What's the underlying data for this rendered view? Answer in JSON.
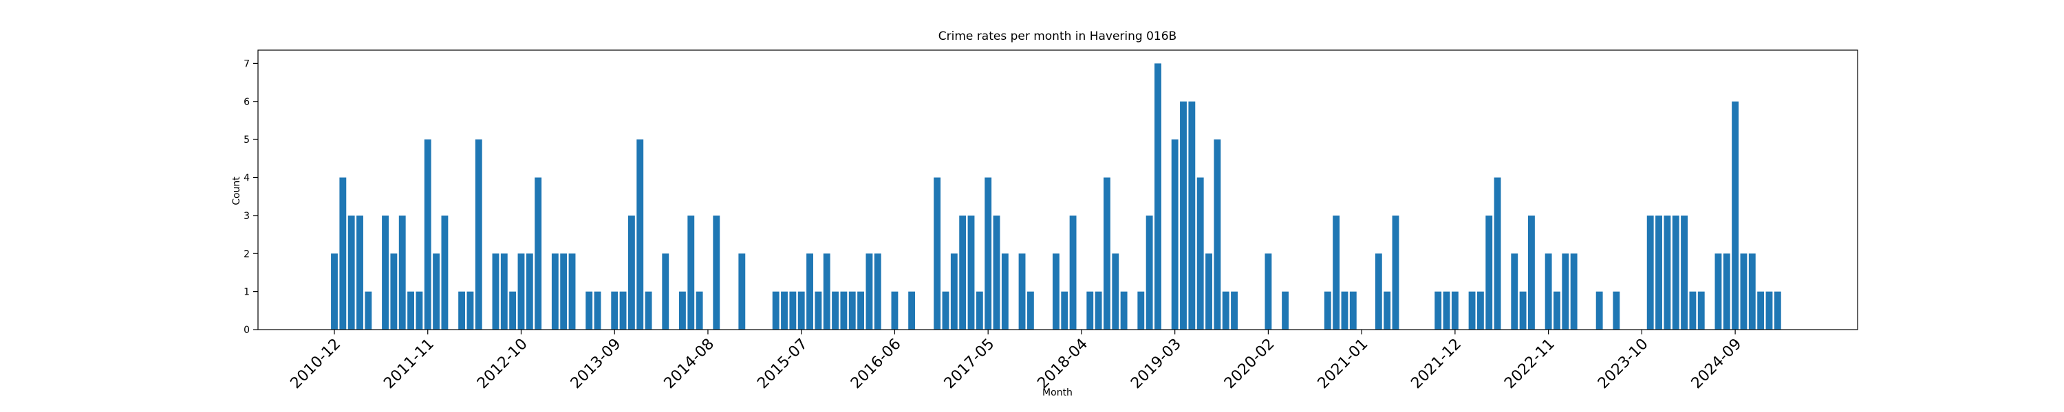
{
  "chart_data": {
    "type": "bar",
    "title": "Crime rates per month in Havering 016B",
    "x_label": "Month",
    "y_label": "Count",
    "color": "#1f77b4",
    "categories": [
      "2010-12",
      null,
      null,
      null,
      null,
      null,
      null,
      null,
      null,
      null,
      null,
      "2011-11",
      null,
      null,
      null,
      null,
      null,
      null,
      null,
      null,
      null,
      null,
      "2012-10",
      null,
      null,
      null,
      null,
      null,
      null,
      null,
      null,
      null,
      null,
      "2013-09",
      null,
      null,
      null,
      null,
      null,
      null,
      null,
      null,
      null,
      null,
      "2014-08",
      null,
      null,
      null,
      null,
      null,
      null,
      null,
      null,
      null,
      null,
      "2015-07",
      null,
      null,
      null,
      null,
      null,
      null,
      null,
      null,
      null,
      null,
      "2016-06",
      null,
      null,
      null,
      null,
      null,
      null,
      null,
      null,
      null,
      null,
      "2017-05",
      null,
      null,
      null,
      null,
      null,
      null,
      null,
      null,
      null,
      null,
      "2018-04",
      null,
      null,
      null,
      null,
      null,
      null,
      null,
      null,
      null,
      null,
      "2019-03",
      null,
      null,
      null,
      null,
      null,
      null,
      null,
      null,
      null,
      null,
      "2020-02",
      null,
      null,
      null,
      null,
      null,
      null,
      null,
      null,
      null,
      null,
      "2021-01",
      null,
      null,
      null,
      null,
      null,
      null,
      null,
      null,
      null,
      null,
      "2021-12",
      null,
      null,
      null,
      null,
      null,
      null,
      null,
      null,
      null,
      null,
      "2022-11",
      null,
      null,
      null,
      null,
      null,
      null,
      null,
      null,
      null,
      null,
      "2023-10",
      null,
      null,
      null,
      null,
      null,
      null,
      null,
      null,
      null,
      null,
      "2024-09",
      null,
      null,
      null,
      null,
      null
    ],
    "values": [
      2,
      4,
      3,
      3,
      1,
      0,
      3,
      2,
      3,
      1,
      1,
      5,
      2,
      3,
      0,
      1,
      1,
      5,
      0,
      2,
      2,
      1,
      2,
      2,
      4,
      0,
      2,
      2,
      2,
      0,
      1,
      1,
      0,
      1,
      1,
      3,
      5,
      1,
      0,
      2,
      0,
      1,
      3,
      1,
      0,
      3,
      0,
      0,
      2,
      0,
      0,
      0,
      1,
      1,
      1,
      1,
      2,
      1,
      2,
      1,
      1,
      1,
      1,
      2,
      2,
      0,
      1,
      0,
      1,
      0,
      0,
      4,
      1,
      2,
      3,
      3,
      1,
      4,
      3,
      2,
      0,
      2,
      1,
      0,
      0,
      2,
      1,
      3,
      0,
      1,
      1,
      4,
      2,
      1,
      0,
      1,
      3,
      7,
      0,
      5,
      6,
      6,
      4,
      2,
      5,
      1,
      1,
      0,
      0,
      0,
      2,
      0,
      1,
      0,
      0,
      0,
      0,
      1,
      3,
      1,
      1,
      0,
      0,
      2,
      1,
      3,
      0,
      0,
      0,
      0,
      1,
      1,
      1,
      0,
      1,
      1,
      3,
      4,
      0,
      2,
      1,
      3,
      0,
      2,
      1,
      2,
      2,
      0,
      0,
      1,
      0,
      1,
      0,
      0,
      0,
      3,
      3,
      3,
      3,
      3,
      1,
      1,
      0,
      2,
      2,
      6,
      2,
      2,
      1,
      1,
      1
    ],
    "ylim": [
      0,
      7.35
    ],
    "yticks": [
      0,
      1,
      2,
      3,
      4,
      5,
      6,
      7
    ],
    "grid": false
  }
}
